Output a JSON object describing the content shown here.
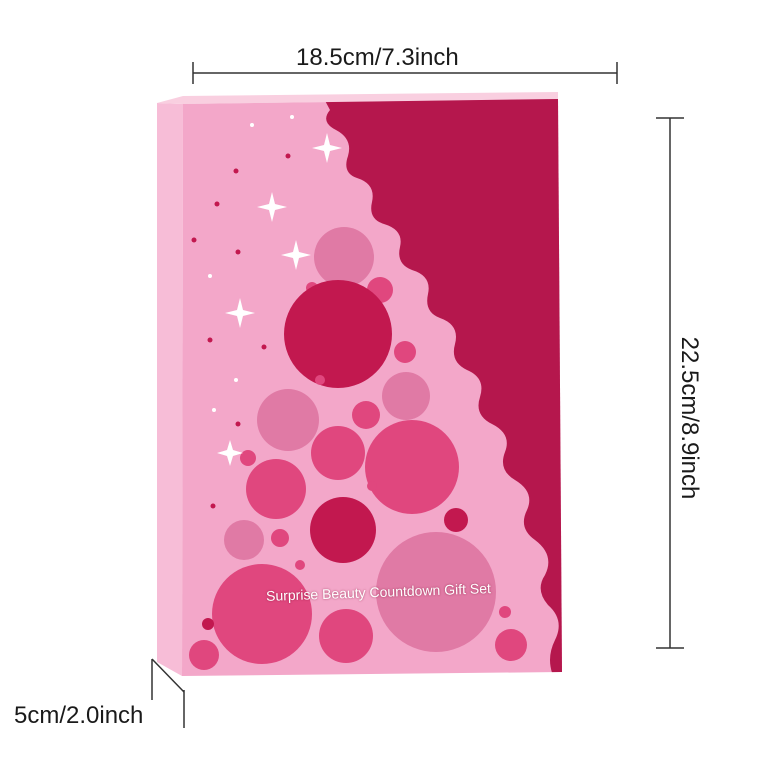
{
  "dimensions": {
    "width": "18.5cm/7.3inch",
    "height": "22.5cm/8.9inch",
    "depth": "5cm/2.0inch"
  },
  "box": {
    "title": "Surprise Beauty Countdown Gift Set"
  },
  "colors": {
    "box_pink": "#f3a7c9",
    "box_side": "#f7bdd7",
    "box_crimson": "#b5174d",
    "bubble_dark": "#c2184f",
    "bubble_mid": "#e0477e",
    "bubble_light": "#e07aa5"
  }
}
